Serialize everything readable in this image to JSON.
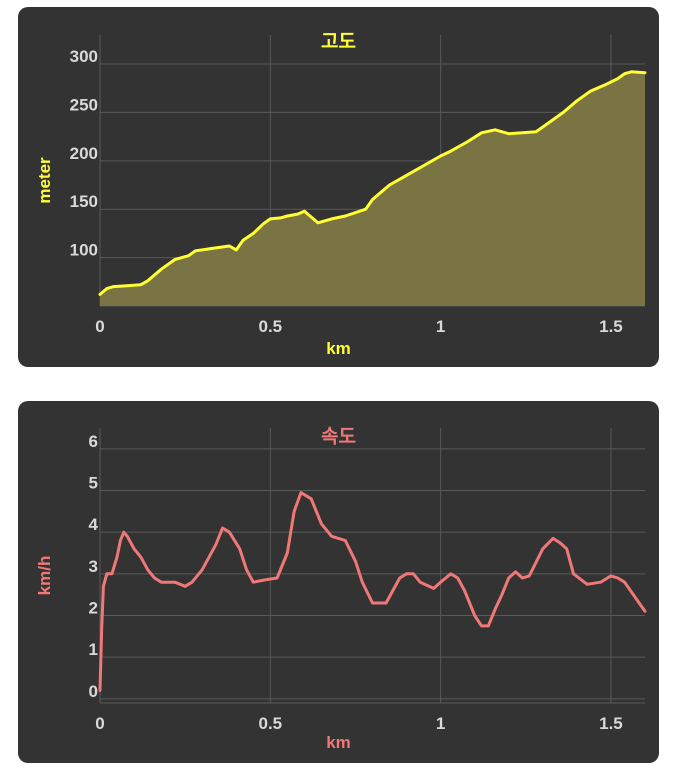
{
  "colors": {
    "card": "#333333",
    "grid": "#5a5a5a",
    "tick": "#d9d9d9",
    "elevation": "#ffff33",
    "elevation_fill": "#7a7444",
    "speed": "#f07878"
  },
  "chart_data": [
    {
      "type": "area",
      "title": "고도",
      "xlabel": "km",
      "ylabel": "meter",
      "xlim": [
        0,
        1.6
      ],
      "ylim": [
        50,
        330
      ],
      "xticks": [
        "0",
        "0.5",
        "1",
        "1.5"
      ],
      "xtick_values": [
        0,
        0.5,
        1,
        1.5
      ],
      "yticks": [
        "100",
        "150",
        "200",
        "250",
        "300"
      ],
      "ytick_values": [
        100,
        150,
        200,
        250,
        300
      ],
      "grid": true,
      "series": [
        {
          "x": [
            0,
            0.02,
            0.04,
            0.08,
            0.12,
            0.14,
            0.18,
            0.22,
            0.23,
            0.26,
            0.28,
            0.3,
            0.34,
            0.38,
            0.4,
            0.42,
            0.45,
            0.48,
            0.5,
            0.53,
            0.55,
            0.58,
            0.6,
            0.62,
            0.64,
            0.68,
            0.72,
            0.78,
            0.8,
            0.85,
            0.9,
            0.95,
            1.0,
            1.03,
            1.08,
            1.12,
            1.16,
            1.2,
            1.28,
            1.32,
            1.36,
            1.4,
            1.44,
            1.48,
            1.52,
            1.54,
            1.56,
            1.6
          ],
          "y": [
            62,
            68,
            70,
            71,
            72,
            76,
            88,
            98,
            99,
            102,
            107,
            108,
            110,
            112,
            108,
            118,
            125,
            135,
            140,
            141,
            143,
            145,
            148,
            142,
            136,
            140,
            143,
            150,
            160,
            175,
            185,
            195,
            205,
            210,
            220,
            229,
            232,
            228,
            230,
            240,
            250,
            262,
            272,
            278,
            285,
            290,
            292,
            291
          ]
        }
      ]
    },
    {
      "type": "line",
      "title": "속도",
      "xlabel": "km",
      "ylabel": "km/h",
      "xlim": [
        0,
        1.6
      ],
      "ylim": [
        -0.1,
        6.5
      ],
      "xticks": [
        "0",
        "0.5",
        "1",
        "1.5"
      ],
      "xtick_values": [
        0,
        0.5,
        1,
        1.5
      ],
      "yticks": [
        "0",
        "1",
        "2",
        "3",
        "4",
        "5",
        "6"
      ],
      "ytick_values": [
        0,
        1,
        2,
        3,
        4,
        5,
        6
      ],
      "grid": true,
      "series": [
        {
          "x": [
            0,
            0.005,
            0.01,
            0.02,
            0.035,
            0.05,
            0.06,
            0.07,
            0.08,
            0.1,
            0.12,
            0.14,
            0.16,
            0.18,
            0.22,
            0.25,
            0.27,
            0.3,
            0.34,
            0.36,
            0.38,
            0.41,
            0.43,
            0.45,
            0.48,
            0.52,
            0.55,
            0.57,
            0.59,
            0.6,
            0.62,
            0.65,
            0.68,
            0.72,
            0.75,
            0.77,
            0.8,
            0.84,
            0.86,
            0.88,
            0.9,
            0.92,
            0.94,
            0.98,
            1.0,
            1.03,
            1.05,
            1.07,
            1.1,
            1.12,
            1.14,
            1.16,
            1.18,
            1.2,
            1.22,
            1.24,
            1.26,
            1.3,
            1.33,
            1.35,
            1.37,
            1.39,
            1.43,
            1.47,
            1.5,
            1.52,
            1.54,
            1.57,
            1.6
          ],
          "y": [
            0.2,
            1.7,
            2.7,
            3.0,
            3.0,
            3.4,
            3.8,
            4.0,
            3.9,
            3.6,
            3.4,
            3.1,
            2.9,
            2.8,
            2.8,
            2.7,
            2.8,
            3.1,
            3.7,
            4.1,
            4.0,
            3.6,
            3.1,
            2.8,
            2.85,
            2.9,
            3.5,
            4.5,
            4.95,
            4.9,
            4.8,
            4.2,
            3.9,
            3.8,
            3.3,
            2.8,
            2.3,
            2.3,
            2.6,
            2.9,
            3.0,
            3.0,
            2.8,
            2.65,
            2.8,
            3.0,
            2.9,
            2.6,
            2.0,
            1.75,
            1.75,
            2.15,
            2.5,
            2.9,
            3.05,
            2.9,
            2.95,
            3.6,
            3.85,
            3.75,
            3.6,
            3.0,
            2.75,
            2.8,
            2.95,
            2.9,
            2.8,
            2.45,
            2.1
          ]
        }
      ]
    }
  ]
}
